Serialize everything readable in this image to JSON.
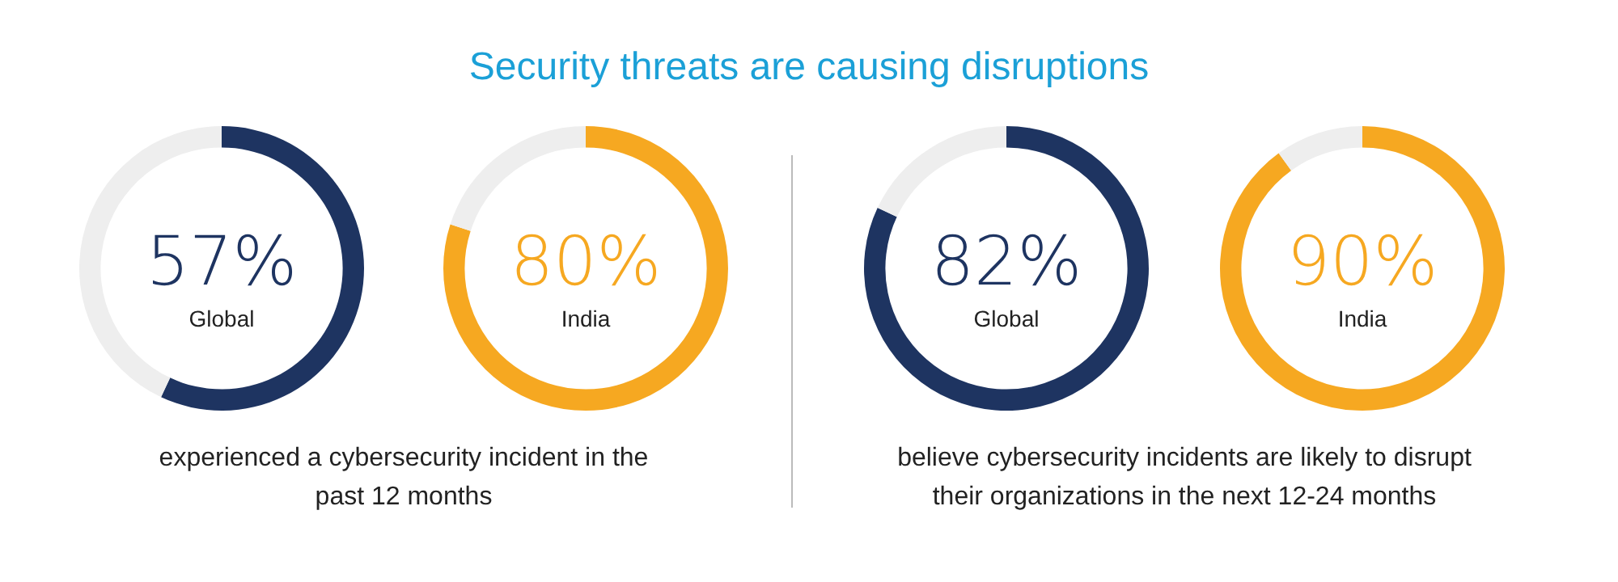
{
  "chart_data": [
    {
      "type": "donut",
      "title": "Security threats are causing disruptions",
      "categories": [
        "Global",
        null
      ],
      "values": [
        57,
        43
      ],
      "colors": [
        "#1e3461",
        "#eeeeee"
      ],
      "value_labels": [
        "57%",
        null
      ],
      "annotations": [
        "experienced a cybersecurity incident in the",
        "past 12 months"
      ]
    },
    {
      "type": "donut",
      "categories": [
        "India",
        null
      ],
      "values": [
        80,
        20
      ],
      "colors": [
        "#f6a821",
        "#eeeeee"
      ],
      "value_labels": [
        "80%",
        null
      ]
    },
    {
      "type": "donut",
      "categories": [
        "Global",
        null
      ],
      "values": [
        82,
        18
      ],
      "colors": [
        "#1e3461",
        "#eeeeee"
      ],
      "value_labels": [
        "82%",
        null
      ],
      "annotations": [
        "believe cybersecurity incidents are likely to disrupt",
        "their organizations in the next 12-24 months"
      ]
    },
    {
      "type": "donut",
      "categories": [
        "India",
        null
      ],
      "values": [
        90,
        10
      ],
      "colors": [
        "#f6a821",
        "#eeeeee"
      ],
      "value_labels": [
        "90%",
        null
      ]
    }
  ]
}
